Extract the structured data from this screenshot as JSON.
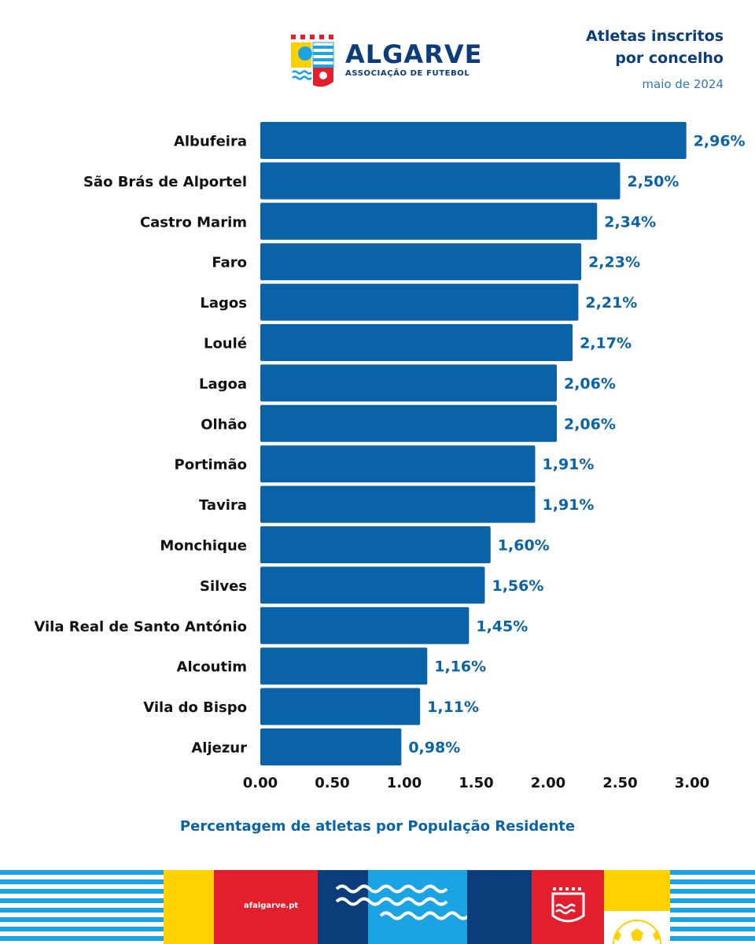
{
  "header": {
    "logo_name": "ALGARVE",
    "logo_subtitle": "ASSOCIAÇÃO DE FUTEBOL",
    "title_line1": "Atletas inscritos",
    "title_line2": "por concelho",
    "date": "maio de 2024"
  },
  "chart_data": {
    "type": "bar",
    "orientation": "horizontal",
    "categories": [
      "Albufeira",
      "São Brás de Alportel",
      "Castro Marim",
      "Faro",
      "Lagos",
      "Loulé",
      "Lagoa",
      "Olhão",
      "Portimão",
      "Tavira",
      "Monchique",
      "Silves",
      "Vila Real de Santo António",
      "Alcoutim",
      "Vila do Bispo",
      "Aljezur"
    ],
    "values": [
      2.96,
      2.5,
      2.34,
      2.23,
      2.21,
      2.17,
      2.06,
      2.06,
      1.91,
      1.91,
      1.6,
      1.56,
      1.45,
      1.16,
      1.11,
      0.98
    ],
    "value_labels": [
      "2,96%",
      "2,50%",
      "2,34%",
      "2,23%",
      "2,21%",
      "2,17%",
      "2,06%",
      "2,06%",
      "1,91%",
      "1,91%",
      "1,60%",
      "1,56%",
      "1,45%",
      "1,16%",
      "1,11%",
      "0,98%"
    ],
    "xlim": [
      0,
      3
    ],
    "xticks": [
      "0.00",
      "0.50",
      "1.00",
      "1.50",
      "2.00",
      "2.50",
      "3.00"
    ],
    "xlabel": "Percentagem de atletas por População Residente",
    "grid": false,
    "legend": "none",
    "bar_color": "#0a63a7",
    "label_color": "#0a63a7"
  },
  "footer": {
    "url": "afalgarve.pt"
  },
  "colors": {
    "navy": "#0b3d7a",
    "blue": "#0a63a7",
    "light_blue": "#1aa4e4",
    "yellow": "#ffd100",
    "red": "#e31e2d"
  }
}
